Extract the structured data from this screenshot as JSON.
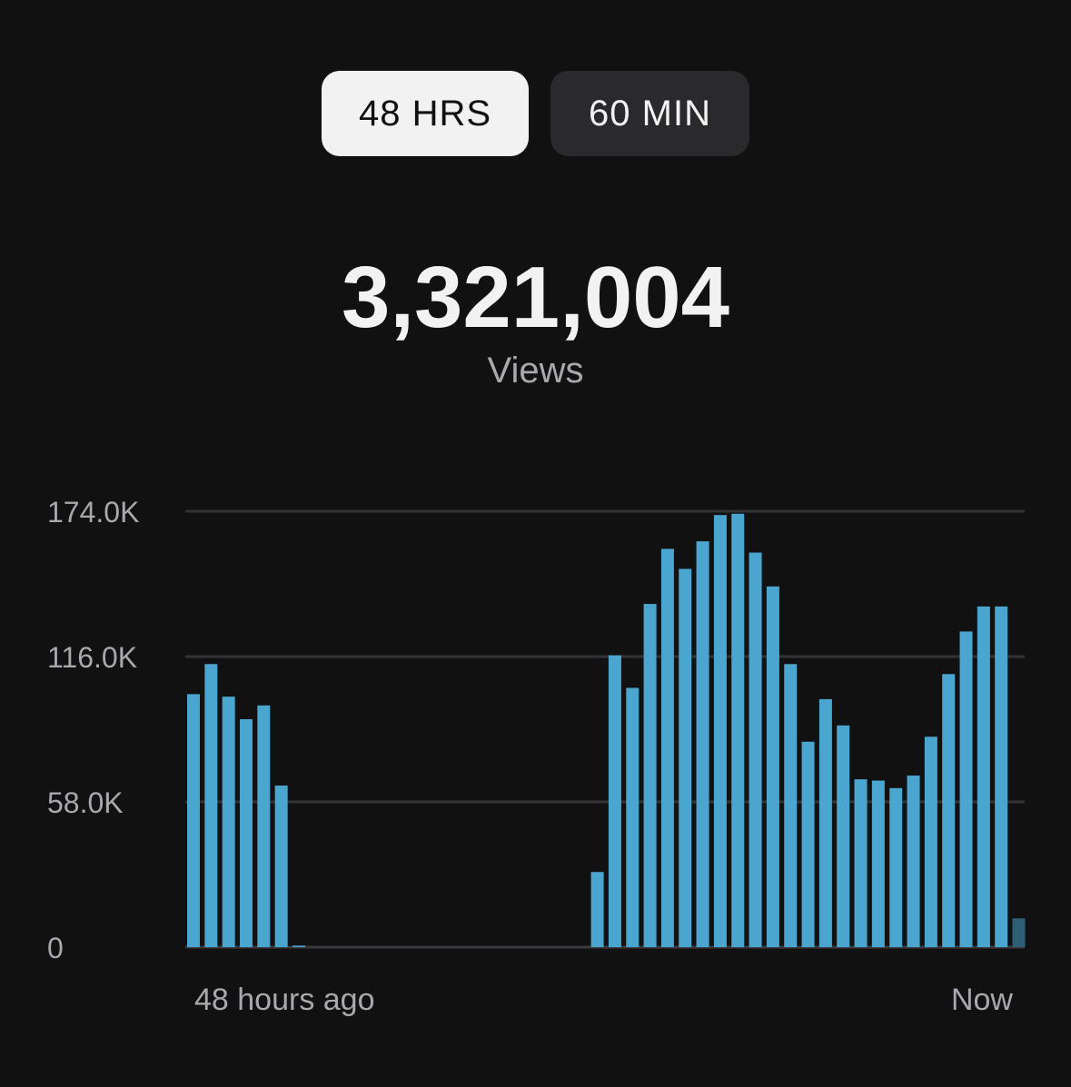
{
  "toggle": {
    "active_label": "48 HRS",
    "inactive_label": "60 MIN"
  },
  "summary": {
    "total": "3,321,004",
    "metric": "Views"
  },
  "chart_data": {
    "type": "bar",
    "ylim": [
      0,
      174000
    ],
    "yticks": [
      {
        "value": 0,
        "label": "0"
      },
      {
        "value": 58000,
        "label": "58.0K"
      },
      {
        "value": 116000,
        "label": "116.0K"
      },
      {
        "value": 174000,
        "label": "174.0K"
      }
    ],
    "x_start_label": "48 hours ago",
    "x_end_label": "Now",
    "grid": true,
    "bar_color": "#4ba6cf",
    "partial_bar_color": "#2c5f74",
    "values": [
      101000,
      113000,
      100000,
      91000,
      96500,
      64500,
      600,
      0,
      0,
      0,
      0,
      0,
      0,
      0,
      0,
      0,
      0,
      0,
      0,
      0,
      0,
      0,
      0,
      30000,
      116500,
      103500,
      137000,
      159000,
      151000,
      162000,
      172500,
      173000,
      157500,
      144000,
      113000,
      82000,
      99000,
      88500,
      67000,
      66500,
      63500,
      68500,
      84000,
      109000,
      126000,
      136000,
      136000,
      11500
    ],
    "partial_last": true
  }
}
